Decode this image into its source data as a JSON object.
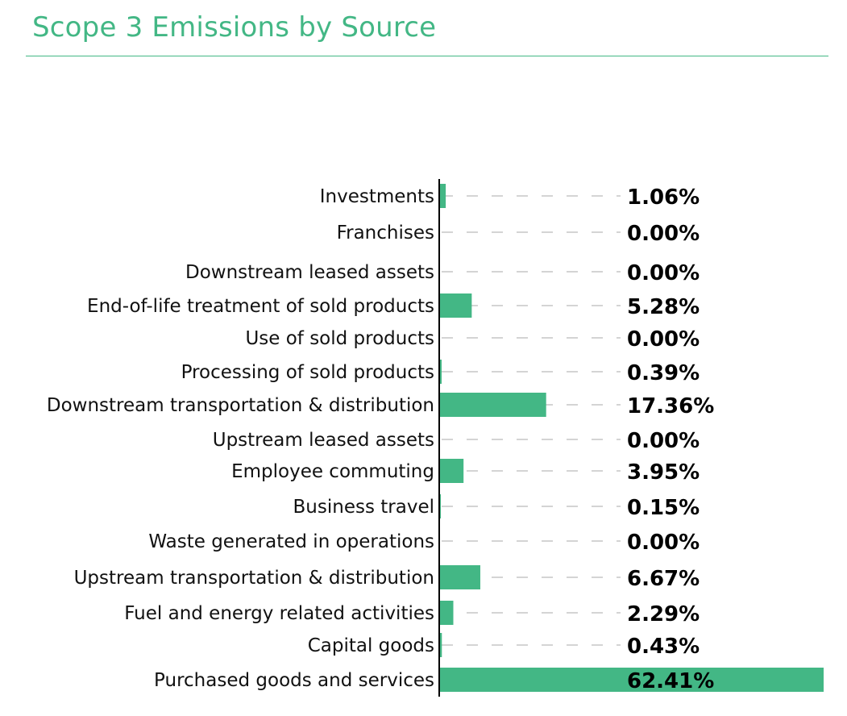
{
  "chart_data": {
    "type": "bar",
    "orientation": "horizontal",
    "title": "Scope 3 Emissions by Source",
    "categories": [
      "Investments",
      "Franchises",
      "Downstream leased assets",
      "End-of-life treatment of sold products",
      "Use of sold products",
      "Processing of sold products",
      "Downstream transportation & distribution",
      "Upstream leased assets",
      "Employee commuting",
      "Business travel",
      "Waste generated in operations",
      "Upstream transportation & distribution",
      "Fuel and energy related activities",
      "Capital goods",
      "Purchased goods and services"
    ],
    "values": [
      1.06,
      0.0,
      0.0,
      5.28,
      0.0,
      0.39,
      17.36,
      0.0,
      3.95,
      0.15,
      0.0,
      6.67,
      2.29,
      0.43,
      62.41
    ],
    "value_labels": [
      "1.06%",
      "0.00%",
      "0.00%",
      "5.28%",
      "0.00%",
      "0.39%",
      "17.36%",
      "0.00%",
      "3.95%",
      "0.15%",
      "0.00%",
      "6.67%",
      "2.29%",
      "0.43%",
      "62.41%"
    ],
    "unit": "%",
    "xlim": [
      0,
      62.41
    ],
    "grid": false,
    "legend": "none",
    "bar_color": "#43b785",
    "leader_line_color": "#a8a8a8",
    "axis_color": "#000000"
  }
}
